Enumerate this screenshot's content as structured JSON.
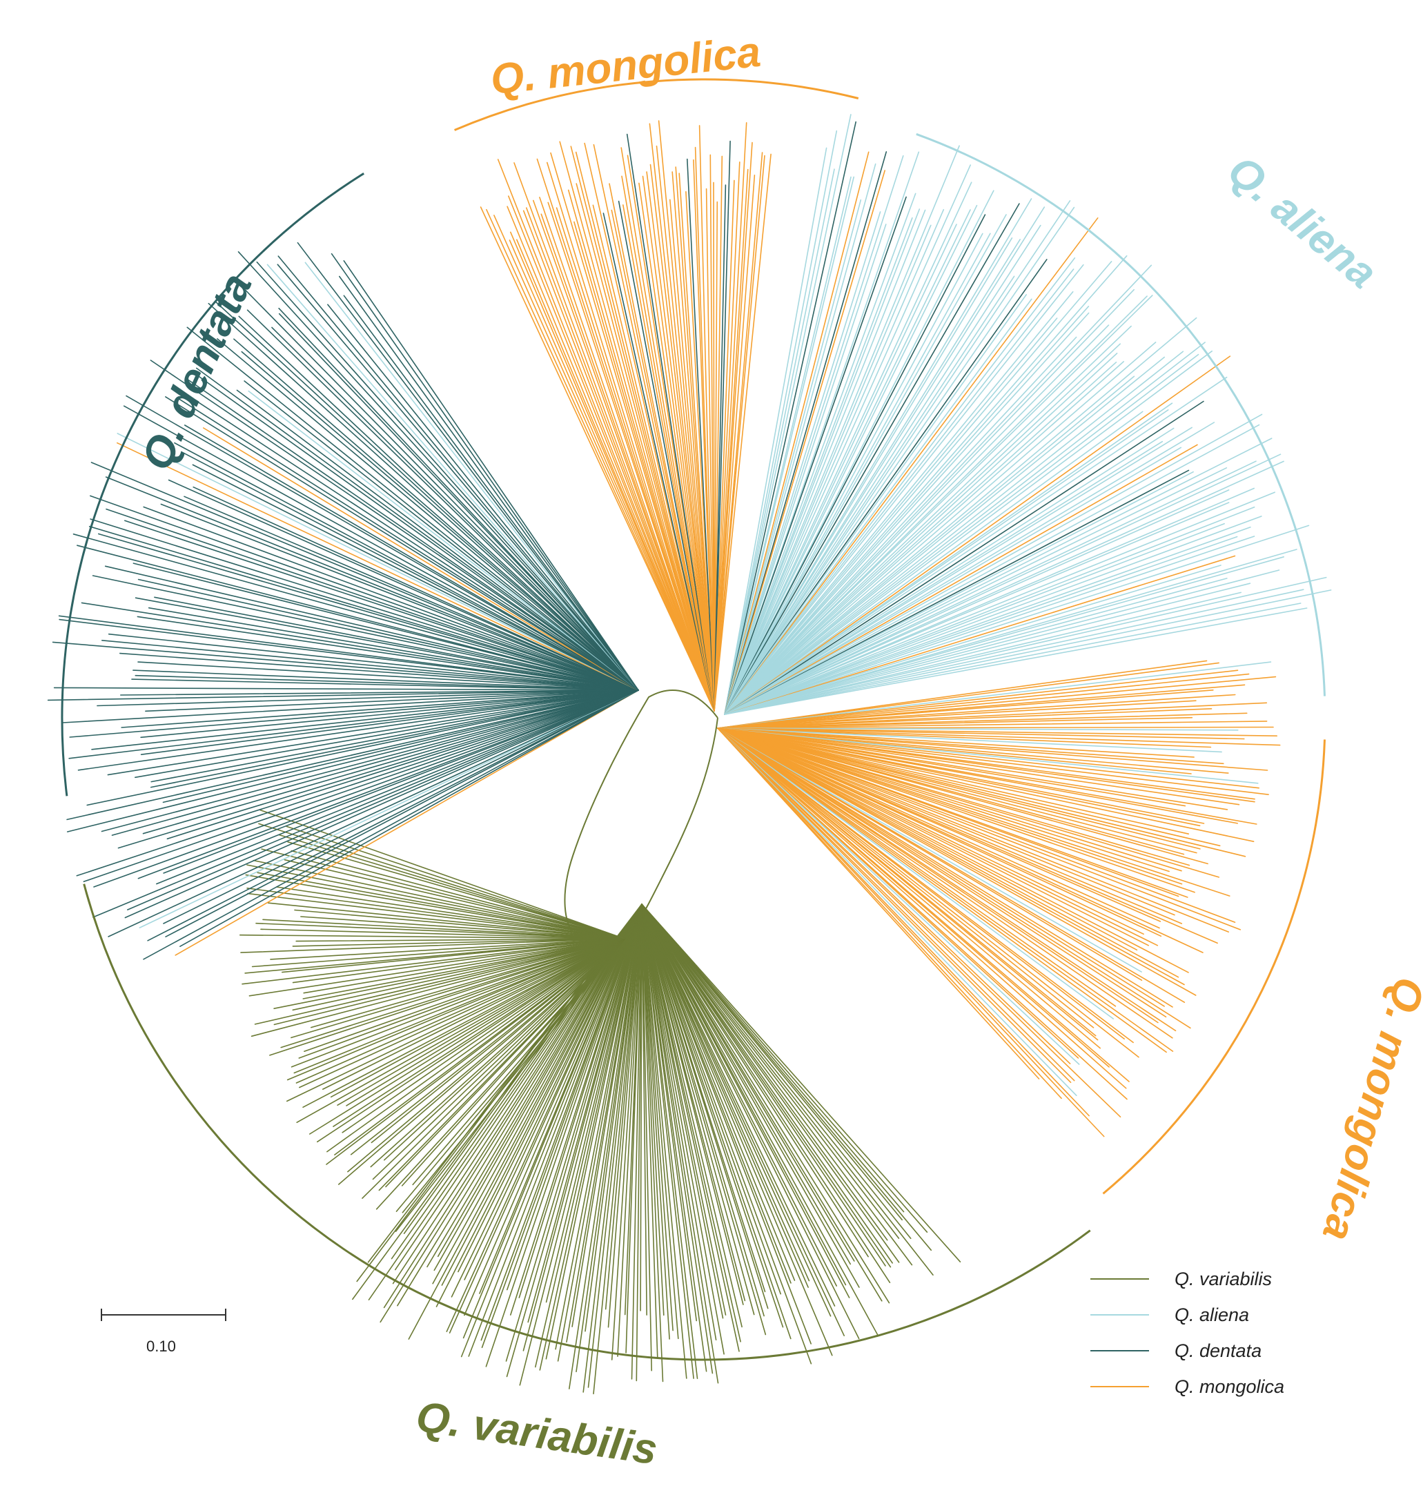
{
  "colors": {
    "variabilis": "#6b7a35",
    "aliena": "#a6d8df",
    "dentata": "#2e6363",
    "mongolica": "#f5a030"
  },
  "clades": [
    {
      "key": "mongolica",
      "label": "Q. mongolica"
    },
    {
      "key": "aliena",
      "label": "Q. aliena"
    },
    {
      "key": "mongolica",
      "label": "Q. mongolica"
    },
    {
      "key": "variabilis",
      "label": "Q. variabilis"
    },
    {
      "key": "dentata",
      "label": "Q. dentata"
    }
  ],
  "legend": [
    {
      "key": "variabilis",
      "label": "Q. variabilis"
    },
    {
      "key": "aliena",
      "label": "Q. aliena"
    },
    {
      "key": "dentata",
      "label": "Q. dentata"
    },
    {
      "key": "mongolica",
      "label": "Q. mongolica"
    }
  ],
  "scale_bar": {
    "label": "0.10",
    "value": 0.1
  }
}
